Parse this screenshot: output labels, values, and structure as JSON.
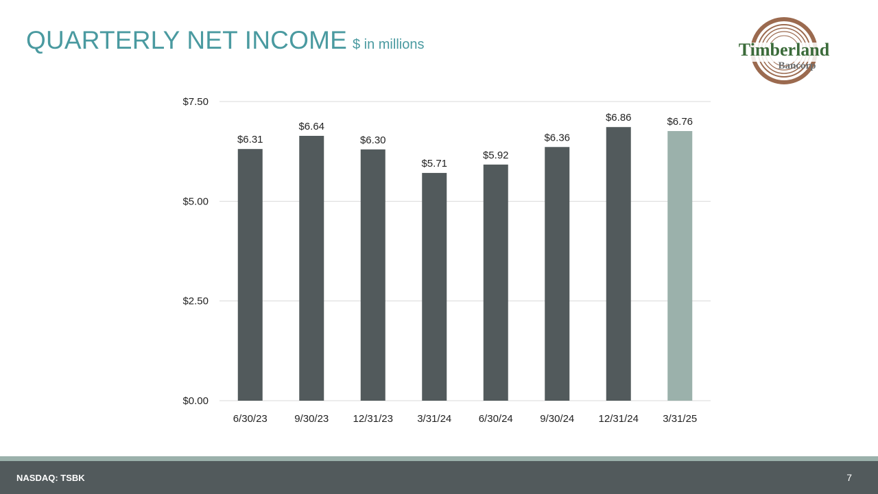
{
  "header": {
    "title": "QUARTERLY NET INCOME",
    "subtitle": "$ in millions"
  },
  "logo": {
    "line1": "Timberland",
    "line2": "Bancorp"
  },
  "footer": {
    "ticker": "NASDAQ: TSBK",
    "page_number": "7"
  },
  "colors": {
    "title": "#4a9aa0",
    "bar": "#525a5c",
    "bar_highlight": "#9bb1ab",
    "footer": "#525a5c"
  },
  "chart_data": {
    "type": "bar",
    "categories": [
      "6/30/23",
      "9/30/23",
      "12/31/23",
      "3/31/24",
      "6/30/24",
      "9/30/24",
      "12/31/24",
      "3/31/25"
    ],
    "values": [
      6.31,
      6.64,
      6.3,
      5.71,
      5.92,
      6.36,
      6.86,
      6.76
    ],
    "data_labels": [
      "$6.31",
      "$6.64",
      "$6.30",
      "$5.71",
      "$5.92",
      "$6.36",
      "$6.86",
      "$6.76"
    ],
    "highlight_index": 7,
    "ylim": [
      0,
      7.5
    ],
    "yticks": [
      0,
      2.5,
      5,
      7.5
    ],
    "ytick_labels": [
      "$0.00",
      "$2.50",
      "$5.00",
      "$7.50"
    ],
    "grid": true,
    "legend": "none"
  }
}
